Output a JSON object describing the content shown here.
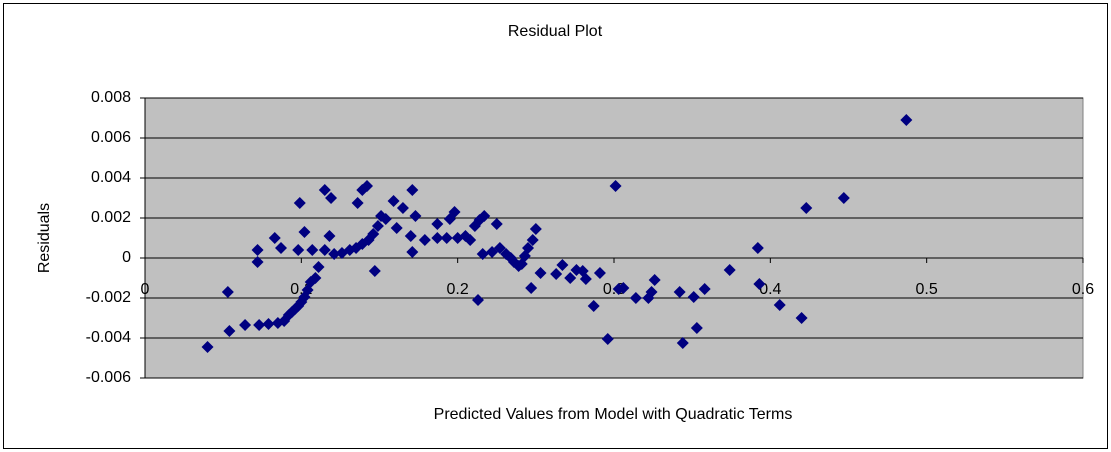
{
  "chart_data": {
    "type": "scatter",
    "title": "Residual Plot",
    "x_label": "Predicted Values from Model with Quadratic Terms",
    "y_label": "Residuals",
    "color": "#000080",
    "grid": true,
    "xlim": [
      0,
      0.6
    ],
    "xticks": [
      0,
      0.1,
      0.2,
      0.3,
      0.4,
      0.5,
      0.6
    ],
    "ylim": [
      -0.006,
      0.008
    ],
    "yticks": [
      -0.006,
      -0.004,
      -0.002,
      0,
      0.002,
      0.004,
      0.006,
      0.008
    ],
    "x": [
      0.04,
      0.053,
      0.054,
      0.064,
      0.072,
      0.072,
      0.073,
      0.079,
      0.083,
      0.085,
      0.087,
      0.089,
      0.092,
      0.094,
      0.096,
      0.098,
      0.1,
      0.102,
      0.104,
      0.106,
      0.109,
      0.111,
      0.099,
      0.098,
      0.102,
      0.107,
      0.115,
      0.115,
      0.119,
      0.118,
      0.121,
      0.126,
      0.131,
      0.135,
      0.139,
      0.143,
      0.146,
      0.149,
      0.151,
      0.136,
      0.139,
      0.142,
      0.147,
      0.154,
      0.159,
      0.161,
      0.165,
      0.171,
      0.17,
      0.171,
      0.173,
      0.179,
      0.187,
      0.187,
      0.193,
      0.195,
      0.198,
      0.2,
      0.205,
      0.208,
      0.211,
      0.214,
      0.217,
      0.213,
      0.216,
      0.222,
      0.225,
      0.227,
      0.231,
      0.234,
      0.236,
      0.239,
      0.241,
      0.243,
      0.245,
      0.248,
      0.25,
      0.247,
      0.253,
      0.263,
      0.267,
      0.272,
      0.276,
      0.28,
      0.282,
      0.287,
      0.291,
      0.296,
      0.301,
      0.303,
      0.306,
      0.314,
      0.322,
      0.324,
      0.326,
      0.342,
      0.344,
      0.351,
      0.353,
      0.358,
      0.374,
      0.392,
      0.393,
      0.406,
      0.42,
      0.423,
      0.447,
      0.487
    ],
    "values": [
      -0.00445,
      -0.0017,
      -0.00365,
      -0.00335,
      -0.0002,
      0.0004,
      -0.00335,
      -0.0033,
      0.001,
      -0.00325,
      0.0005,
      -0.00315,
      -0.00285,
      -0.0027,
      -0.00255,
      -0.0024,
      -0.0022,
      -0.00195,
      -0.0016,
      -0.0012,
      -0.001,
      -0.00045,
      0.00275,
      0.0004,
      0.0013,
      0.0004,
      0.0004,
      0.0034,
      0.003,
      0.0011,
      0.0002,
      0.00025,
      0.0004,
      0.0005,
      0.0007,
      0.0009,
      0.0012,
      0.0016,
      0.0021,
      0.00275,
      0.0034,
      0.0036,
      -0.00065,
      0.00195,
      0.00285,
      0.0015,
      0.0025,
      0.0034,
      0.0011,
      0.0003,
      0.0021,
      0.0009,
      0.001,
      0.0017,
      0.001,
      0.00195,
      0.0023,
      0.001,
      0.0011,
      0.0009,
      0.0016,
      0.0019,
      0.0021,
      -0.0021,
      0.0002,
      0.0003,
      0.0017,
      0.0005,
      0.0002,
      0,
      -0.0002,
      -0.0004,
      -0.0003,
      0.0001,
      0.0005,
      0.0009,
      0.00145,
      -0.0015,
      -0.00075,
      -0.0008,
      -0.00035,
      -0.001,
      -0.0006,
      -0.00065,
      -0.00105,
      -0.0024,
      -0.00075,
      -0.00405,
      0.0036,
      -0.00155,
      -0.0015,
      -0.002,
      -0.002,
      -0.0017,
      -0.0011,
      -0.0017,
      -0.00425,
      -0.00195,
      -0.0035,
      -0.00155,
      -0.0006,
      0.0005,
      -0.0013,
      -0.00235,
      -0.003,
      0.0025,
      0.003,
      0.0069
    ]
  }
}
